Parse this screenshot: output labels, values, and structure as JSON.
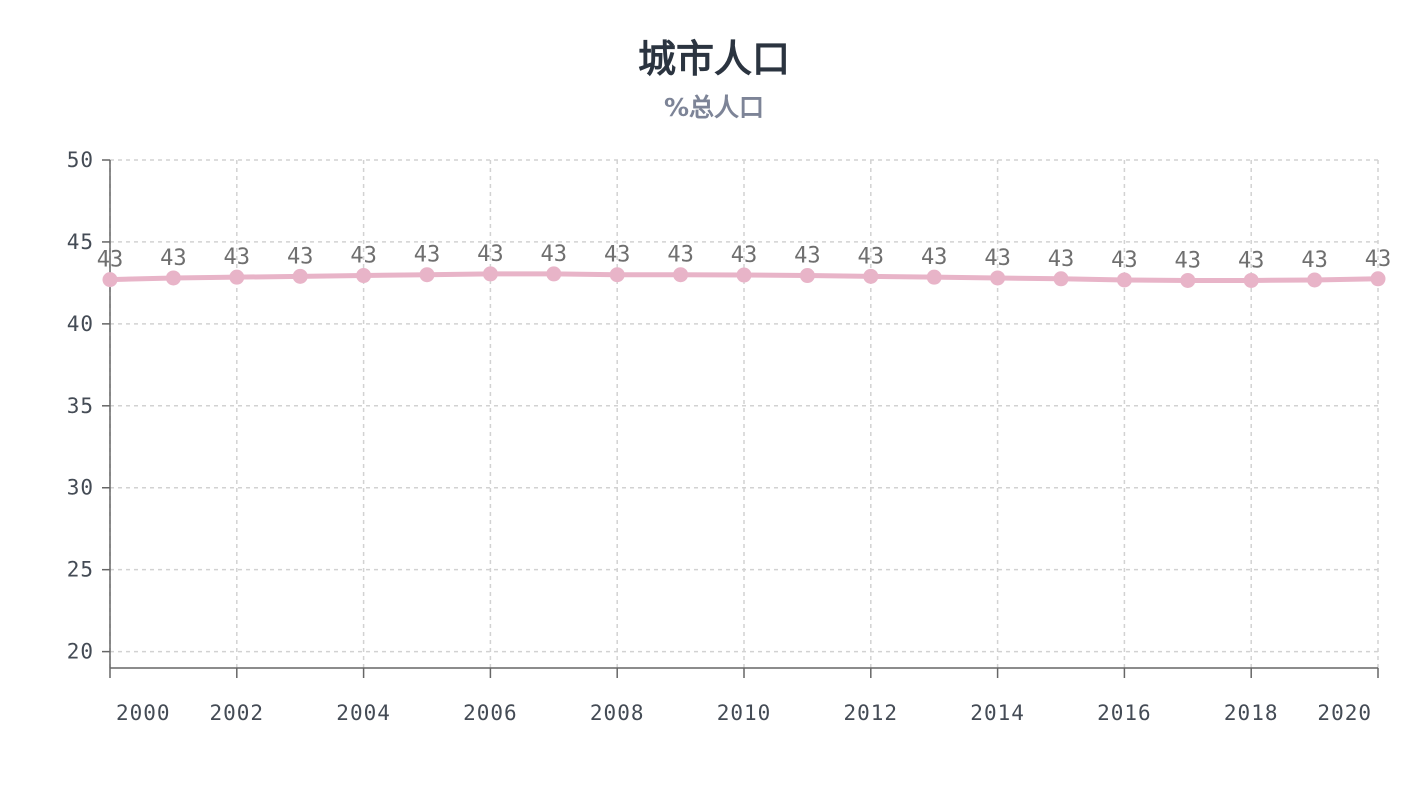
{
  "chart_data": {
    "type": "line",
    "title": "城市人口",
    "subtitle": "%总人口",
    "x": [
      2000,
      2001,
      2002,
      2003,
      2004,
      2005,
      2006,
      2007,
      2008,
      2009,
      2010,
      2011,
      2012,
      2013,
      2014,
      2015,
      2016,
      2017,
      2018,
      2019,
      2020
    ],
    "x_tick_labels": [
      "2000",
      "2002",
      "2004",
      "2006",
      "2008",
      "2010",
      "2012",
      "2014",
      "2016",
      "2018",
      "2020"
    ],
    "series": [
      {
        "values": [
          42.7,
          42.8,
          42.85,
          42.9,
          42.95,
          43.0,
          43.05,
          43.05,
          43.0,
          43.0,
          42.98,
          42.95,
          42.9,
          42.85,
          42.8,
          42.75,
          42.68,
          42.65,
          42.65,
          42.68,
          42.75
        ],
        "labels": [
          "43",
          "43",
          "43",
          "43",
          "43",
          "43",
          "43",
          "43",
          "43",
          "43",
          "43",
          "43",
          "43",
          "43",
          "43",
          "43",
          "43",
          "43",
          "43",
          "43",
          "43"
        ],
        "color": "#e8b4c8"
      }
    ],
    "y_ticks": [
      20,
      25,
      30,
      35,
      40,
      45,
      50
    ],
    "ylim": [
      19,
      50
    ],
    "xlim": [
      2000,
      2020
    ],
    "grid": true,
    "legend": "none"
  }
}
